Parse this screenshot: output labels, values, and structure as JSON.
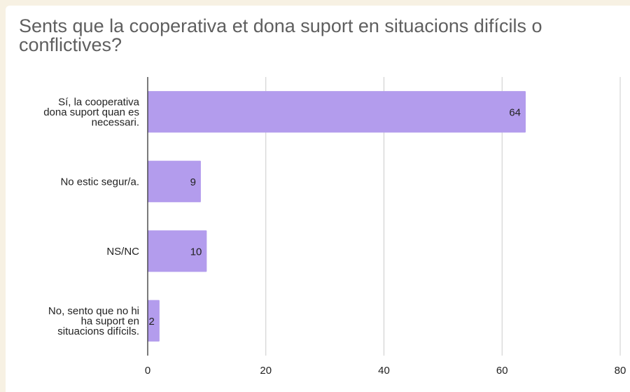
{
  "chart_data": {
    "type": "bar",
    "orientation": "horizontal",
    "title": "Sents que la cooperativa et dona suport en situacions difícils o conflictives?",
    "categories": [
      [
        "Sí, la cooperativa",
        "dona suport quan es",
        "necessari."
      ],
      [
        "No estic segur/a."
      ],
      [
        "NS/NC"
      ],
      [
        "No, sento que no hi",
        "ha suport en",
        "situacions difícils."
      ]
    ],
    "values": [
      64,
      9,
      10,
      2
    ],
    "value_labels": [
      "64",
      "9",
      "10",
      "2"
    ],
    "xlim": [
      0,
      80
    ],
    "xticks": [
      0,
      20,
      40,
      60,
      80
    ],
    "xtick_labels": [
      "0",
      "20",
      "40",
      "60",
      "80"
    ],
    "grid": "vertical",
    "bar_color": "#b39ced",
    "title_color": "#5f5f5f"
  }
}
